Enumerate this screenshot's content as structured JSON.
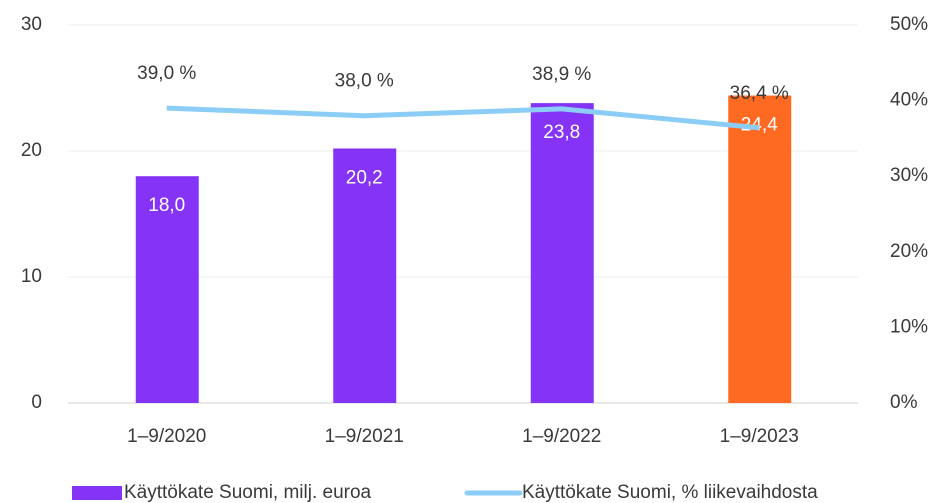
{
  "chart_data": {
    "type": "bar_line",
    "categories": [
      "1–9/2020",
      "1–9/2021",
      "1–9/2022",
      "1–9/2023"
    ],
    "series": [
      {
        "name": "Käyttökate Suomi, milj. euroa",
        "type": "bar",
        "color": "#8533f7",
        "colors": [
          "#8533f7",
          "#8533f7",
          "#8533f7",
          "#ff6a22"
        ],
        "values": [
          18.0,
          20.2,
          23.8,
          24.4
        ],
        "value_labels": [
          "18,0",
          "20,2",
          "23,8",
          "24,4"
        ]
      },
      {
        "name": "Käyttökate Suomi, % liikevaihdosta",
        "type": "line",
        "axis": "y2",
        "color": "#8ccdf7",
        "values": [
          39.0,
          38.0,
          38.9,
          36.4
        ],
        "value_labels": [
          "39,0 %",
          "38,0 %",
          "38,9 %",
          "36,4 %"
        ]
      }
    ],
    "ylim": [
      0,
      30
    ],
    "yticks": [
      0,
      10,
      20,
      30
    ],
    "y2lim": [
      0,
      50
    ],
    "y2ticks": [
      {
        "value": 0,
        "label": "0%"
      },
      {
        "value": 10,
        "label": "10%"
      },
      {
        "value": 20,
        "label": "20%"
      },
      {
        "value": 30,
        "label": "30%"
      },
      {
        "value": 40,
        "label": "40%"
      },
      {
        "value": 50,
        "label": "50%"
      }
    ],
    "grid": true,
    "legend": "bottom"
  }
}
